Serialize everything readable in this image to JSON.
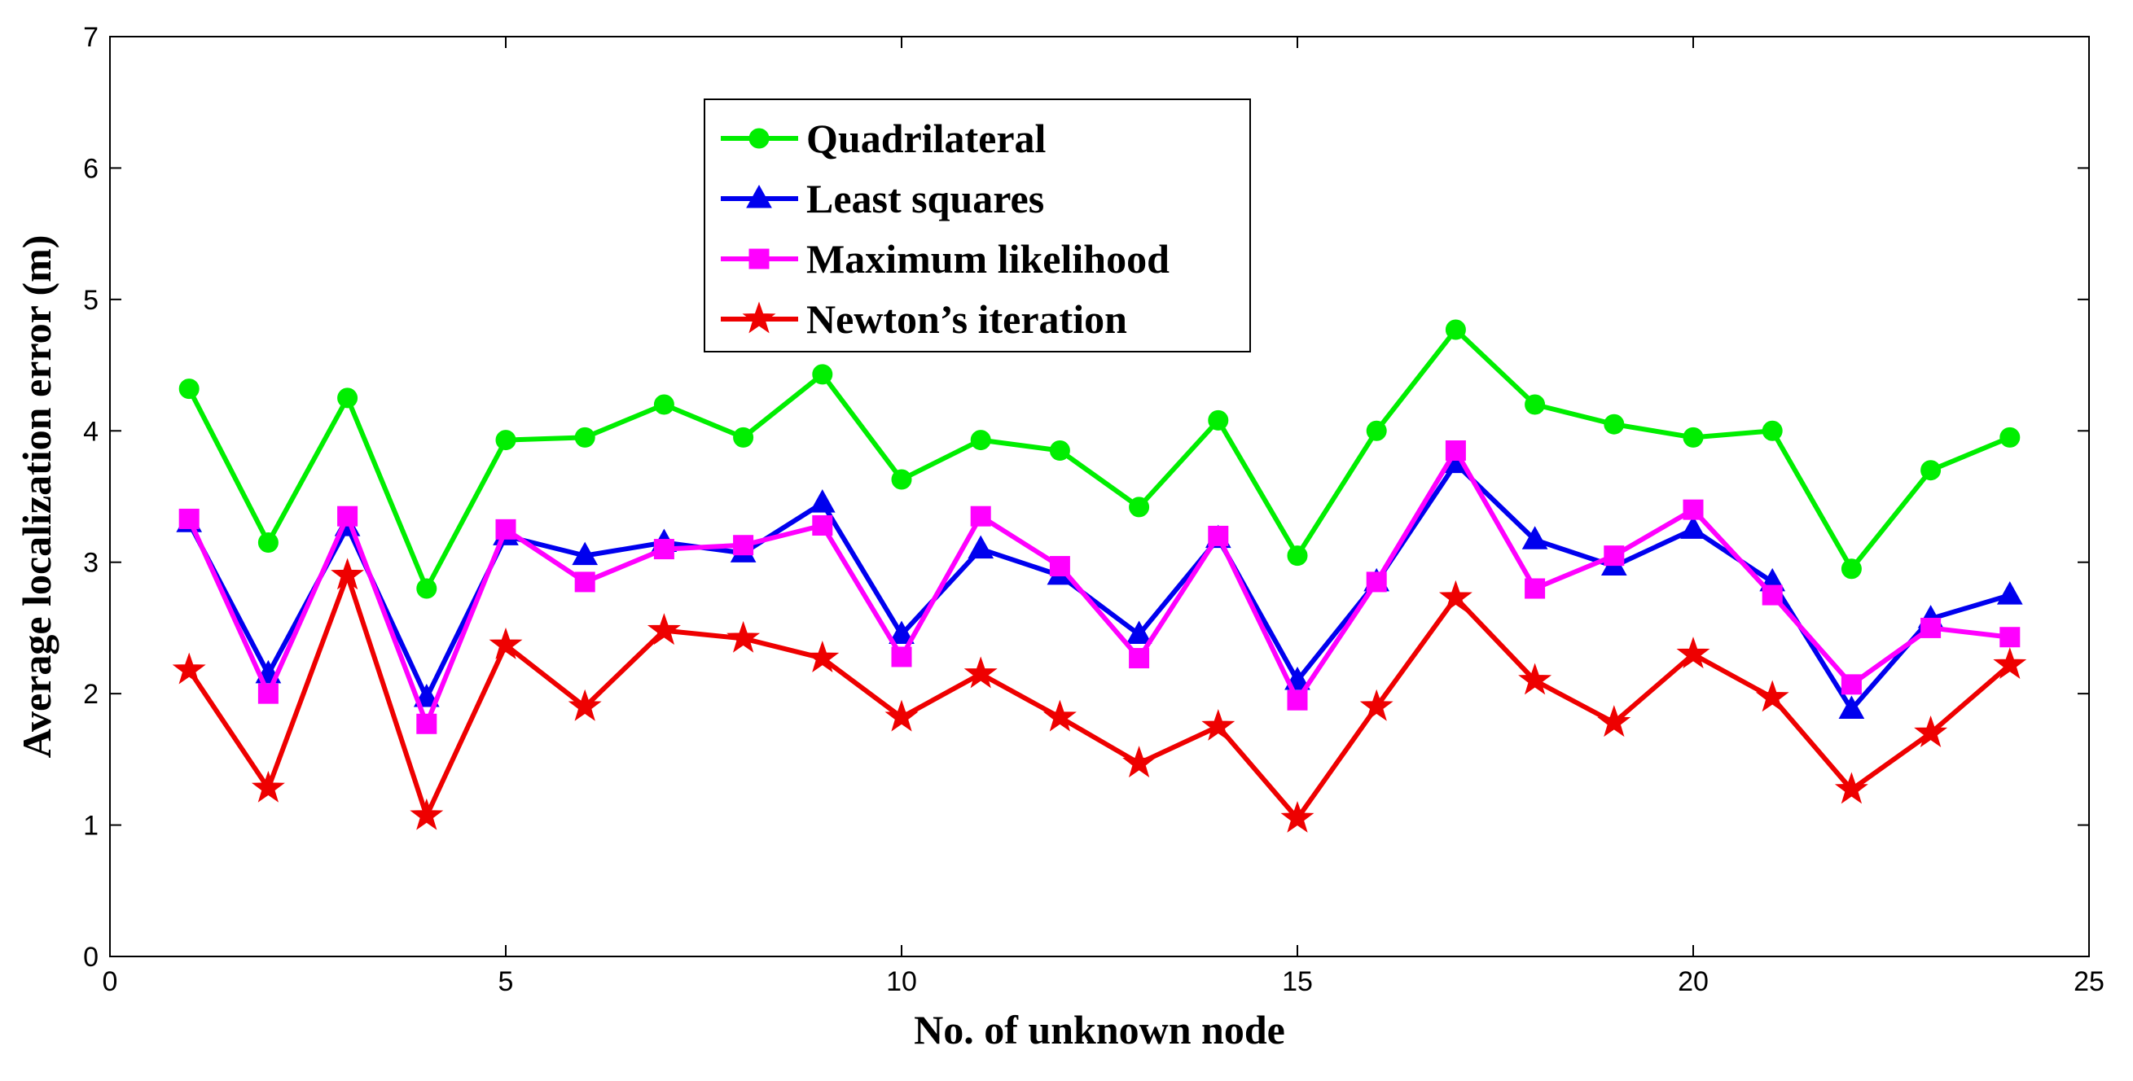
{
  "chart_data": {
    "type": "line",
    "xlabel": "No. of unknown node",
    "ylabel": "Average localization error (m)",
    "xlim": [
      0,
      25
    ],
    "ylim": [
      0,
      7
    ],
    "xticks": [
      0,
      5,
      10,
      15,
      20,
      25
    ],
    "yticks": [
      0,
      1,
      2,
      3,
      4,
      5,
      6,
      7
    ],
    "grid": false,
    "legend_position": "top-center",
    "x": [
      1,
      2,
      3,
      4,
      5,
      6,
      7,
      8,
      9,
      10,
      11,
      12,
      13,
      14,
      15,
      16,
      17,
      18,
      19,
      20,
      21,
      22,
      23,
      24
    ],
    "series": [
      {
        "name": "Quadrilateral",
        "color": "#00ee00",
        "marker": "circle",
        "values": [
          4.32,
          3.15,
          4.25,
          2.8,
          3.93,
          3.95,
          4.2,
          3.95,
          4.43,
          3.63,
          3.93,
          3.85,
          3.42,
          4.08,
          3.05,
          4.0,
          4.77,
          4.2,
          4.05,
          3.95,
          4.0,
          2.95,
          3.7,
          3.95
        ]
      },
      {
        "name": "Least squares",
        "color": "#0000ee",
        "marker": "triangle",
        "values": [
          3.3,
          2.15,
          3.27,
          1.97,
          3.2,
          3.05,
          3.15,
          3.07,
          3.45,
          2.45,
          3.1,
          2.9,
          2.45,
          3.18,
          2.1,
          2.85,
          3.75,
          3.17,
          2.97,
          3.25,
          2.85,
          1.88,
          2.57,
          2.75
        ]
      },
      {
        "name": "Maximum likelihood",
        "color": "#ff00ff",
        "marker": "square",
        "values": [
          3.33,
          2.0,
          3.35,
          1.77,
          3.25,
          2.85,
          3.1,
          3.13,
          3.28,
          2.28,
          3.35,
          2.97,
          2.27,
          3.2,
          1.95,
          2.85,
          3.85,
          2.8,
          3.05,
          3.4,
          2.75,
          2.07,
          2.5,
          2.43
        ]
      },
      {
        "name": "Newton’s iteration",
        "color": "#ee0000",
        "marker": "star",
        "values": [
          2.18,
          1.28,
          2.9,
          1.07,
          2.37,
          1.9,
          2.48,
          2.42,
          2.27,
          1.82,
          2.15,
          1.82,
          1.47,
          1.75,
          1.05,
          1.9,
          2.73,
          2.1,
          1.78,
          2.3,
          1.97,
          1.27,
          1.7,
          2.22
        ]
      }
    ]
  }
}
